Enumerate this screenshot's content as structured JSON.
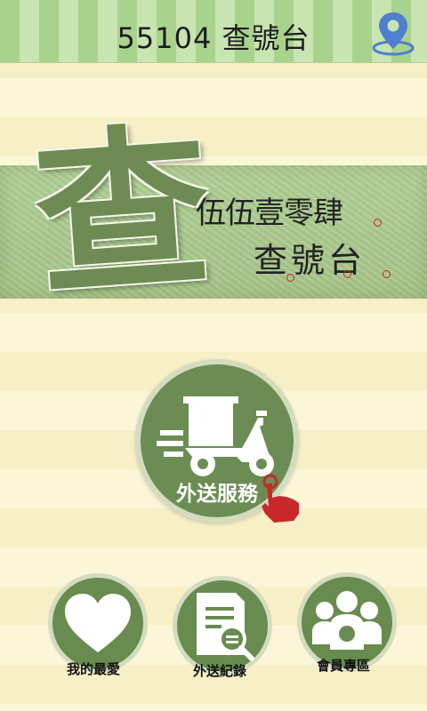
{
  "header": {
    "title": "55104 查號台",
    "location_icon": "location-pin-icon"
  },
  "banner": {
    "big_char": "查",
    "line1": "伍伍壹零肆",
    "line2": "查號台"
  },
  "delivery": {
    "label": "外送服務",
    "icon": "delivery-scooter-icon",
    "pointer_icon": "hand-pointer-icon"
  },
  "bottom_buttons": [
    {
      "label": "我的最愛",
      "icon": "heart-icon"
    },
    {
      "label": "外送紀錄",
      "icon": "document-search-icon"
    },
    {
      "label": "會員專區",
      "icon": "members-group-icon"
    }
  ],
  "colors": {
    "header_stripe_dark": "#a9d38d",
    "header_stripe_light": "#c8e4b1",
    "button_green": "#6b8d53",
    "accent_red": "#c8282a"
  }
}
